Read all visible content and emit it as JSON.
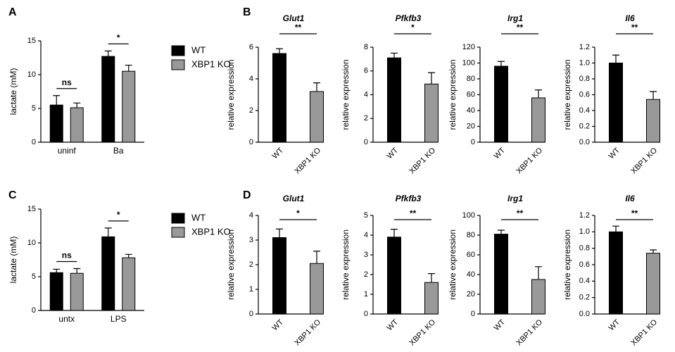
{
  "chart_data": [
    {
      "type": "bar",
      "panel": "A",
      "ylabel": "lactate (mM)",
      "categories": [
        "uninf",
        "Ba"
      ],
      "series": [
        {
          "name": "WT",
          "color": "#000000",
          "values": [
            5.5,
            12.7
          ],
          "errors": [
            1.4,
            0.8
          ]
        },
        {
          "name": "XBP1 KO",
          "color": "#999999",
          "values": [
            5.1,
            10.5
          ],
          "errors": [
            0.7,
            0.9
          ]
        }
      ],
      "significance": [
        "ns",
        "*"
      ],
      "ylim": [
        0,
        15
      ],
      "yticks": [
        0,
        5,
        10,
        15
      ]
    },
    {
      "type": "bar",
      "panel": "B",
      "title": "Glut1",
      "ylabel": "relative expression",
      "categories": [
        "WT",
        "XBP1 KO"
      ],
      "values": [
        5.6,
        3.2
      ],
      "errors": [
        0.3,
        0.55
      ],
      "colors": [
        "#000000",
        "#999999"
      ],
      "significance": "**",
      "ylim": [
        0,
        6
      ],
      "yticks": [
        0,
        2,
        4,
        6
      ]
    },
    {
      "type": "bar",
      "title": "Pfkfb3",
      "ylabel": "relative expression",
      "categories": [
        "WT",
        "XBP1 KO"
      ],
      "values": [
        7.1,
        4.9
      ],
      "errors": [
        0.4,
        0.95
      ],
      "colors": [
        "#000000",
        "#999999"
      ],
      "significance": "*",
      "ylim": [
        0,
        8
      ],
      "yticks": [
        0,
        2,
        4,
        6,
        8
      ]
    },
    {
      "type": "bar",
      "title": "Irg1",
      "ylabel": "relative expression",
      "categories": [
        "WT",
        "XBP1 KO"
      ],
      "values": [
        96,
        56
      ],
      "errors": [
        6,
        10
      ],
      "colors": [
        "#000000",
        "#999999"
      ],
      "significance": "**",
      "ylim": [
        0,
        120
      ],
      "yticks": [
        0,
        20,
        40,
        60,
        80,
        100,
        120
      ]
    },
    {
      "type": "bar",
      "title": "Il6",
      "ylabel": "relative expression",
      "categories": [
        "WT",
        "XBP1 KO"
      ],
      "values": [
        1.0,
        0.54
      ],
      "errors": [
        0.1,
        0.1
      ],
      "colors": [
        "#000000",
        "#999999"
      ],
      "significance": "**",
      "ylim": [
        0,
        1.2
      ],
      "yticks": [
        {
          "value": 0,
          "label": "0.0"
        },
        0.2,
        0.4,
        0.6,
        0.8,
        {
          "value": 1,
          "label": "1.0"
        },
        1.2
      ]
    },
    {
      "type": "bar",
      "panel": "C",
      "ylabel": "lactate (mM)",
      "categories": [
        "untx",
        "LPS"
      ],
      "series": [
        {
          "name": "WT",
          "color": "#000000",
          "values": [
            5.6,
            10.9
          ],
          "errors": [
            0.5,
            1.3
          ]
        },
        {
          "name": "XBP1 KO",
          "color": "#999999",
          "values": [
            5.5,
            7.8
          ],
          "errors": [
            0.7,
            0.5
          ]
        }
      ],
      "significance": [
        "ns",
        "*"
      ],
      "ylim": [
        0,
        15
      ],
      "yticks": [
        0,
        5,
        10,
        15
      ]
    },
    {
      "type": "bar",
      "panel": "D",
      "title": "Glut1",
      "ylabel": "relative expression",
      "categories": [
        "WT",
        "XBP1 KO"
      ],
      "values": [
        3.1,
        2.05
      ],
      "errors": [
        0.35,
        0.5
      ],
      "colors": [
        "#000000",
        "#999999"
      ],
      "significance": "*",
      "ylim": [
        0,
        4
      ],
      "yticks": [
        0,
        1,
        2,
        3,
        4
      ]
    },
    {
      "type": "bar",
      "title": "Pfkfb3",
      "ylabel": "relative expression",
      "categories": [
        "WT",
        "XBP1 KO"
      ],
      "values": [
        3.9,
        1.6
      ],
      "errors": [
        0.4,
        0.45
      ],
      "colors": [
        "#000000",
        "#999999"
      ],
      "significance": "**",
      "ylim": [
        0,
        5
      ],
      "yticks": [
        0,
        1,
        2,
        3,
        4,
        5
      ]
    },
    {
      "type": "bar",
      "title": "Irg1",
      "ylabel": "relative expression",
      "categories": [
        "WT",
        "XBP1 KO"
      ],
      "values": [
        81,
        35
      ],
      "errors": [
        4,
        13
      ],
      "colors": [
        "#000000",
        "#999999"
      ],
      "significance": "**",
      "ylim": [
        0,
        100
      ],
      "yticks": [
        0,
        20,
        40,
        60,
        80,
        100
      ]
    },
    {
      "type": "bar",
      "title": "Il6",
      "ylabel": "relative expression",
      "categories": [
        "WT",
        "XBP1 KO"
      ],
      "values": [
        1.0,
        0.74
      ],
      "errors": [
        0.07,
        0.04
      ],
      "colors": [
        "#000000",
        "#999999"
      ],
      "significance": "**",
      "ylim": [
        0,
        1.2
      ],
      "yticks": [
        {
          "value": 0,
          "label": "0.0"
        },
        0.2,
        0.4,
        0.6,
        0.8,
        {
          "value": 1,
          "label": "1.0"
        },
        1.2
      ]
    }
  ]
}
